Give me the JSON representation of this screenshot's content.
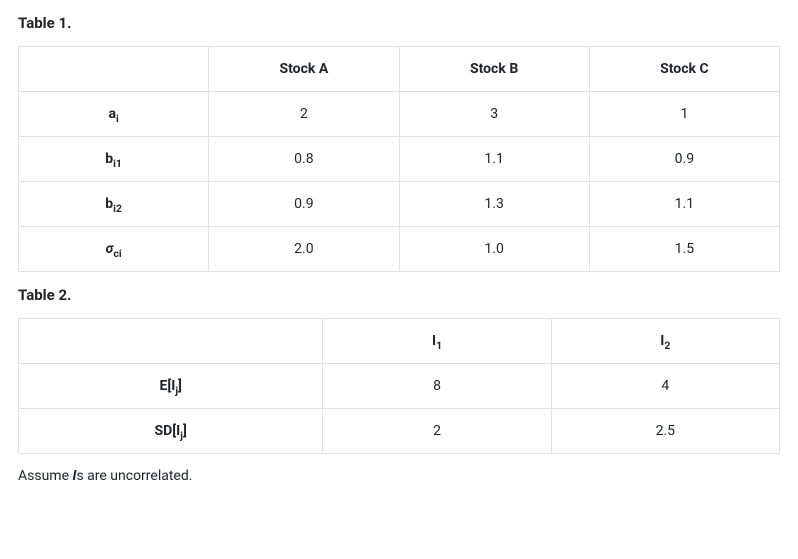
{
  "table1": {
    "caption": "Table 1.",
    "columns": [
      "",
      "Stock A",
      "Stock B",
      "Stock C"
    ],
    "rows": [
      {
        "label_html": "a<sub>i</sub>",
        "values": [
          "2",
          "3",
          "1"
        ]
      },
      {
        "label_html": "b<sub>i1</sub>",
        "values": [
          "0.8",
          "1.1",
          "0.9"
        ]
      },
      {
        "label_html": "b<sub>i2</sub>",
        "values": [
          "0.9",
          "1.3",
          "1.1"
        ]
      },
      {
        "label_html": "<i>σ</i><sub>ci</sub>",
        "values": [
          "2.0",
          "1.0",
          "1.5"
        ]
      }
    ],
    "border_color": "#dee2e6",
    "font_size": 14,
    "cell_padding": 14
  },
  "table2": {
    "caption": "Table 2.",
    "columns_html": [
      "",
      "I<sub>1</sub>",
      "I<sub>2</sub>"
    ],
    "column_widths_pct": [
      40,
      30,
      30
    ],
    "rows": [
      {
        "label_html": "E[I<sub>j</sub>]",
        "values": [
          "8",
          "4"
        ]
      },
      {
        "label_html": "SD[I<sub>j</sub>]",
        "values": [
          "2",
          "2.5"
        ]
      }
    ],
    "border_color": "#dee2e6",
    "font_size": 14,
    "cell_padding": 14
  },
  "note_html": "Assume <span class=\"ital\">I</span>s are uncorrelated."
}
